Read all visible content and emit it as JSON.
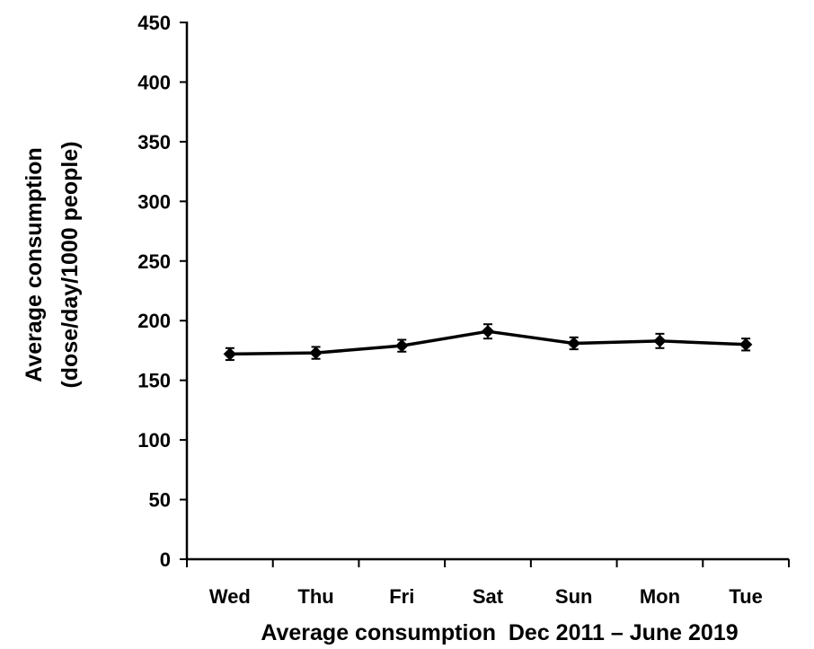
{
  "chart_data": {
    "type": "line",
    "title": "",
    "xlabel": "Average consumption  Dec 2011 – June 2019",
    "ylabel_lines": [
      "Average consumption",
      "(dose/day/1000 people)"
    ],
    "categories": [
      "Wed",
      "Thu",
      "Fri",
      "Sat",
      "Sun",
      "Mon",
      "Tue"
    ],
    "series": [
      {
        "values": [
          172,
          173,
          179,
          191,
          181,
          183,
          180
        ],
        "errors": [
          5,
          5,
          5,
          6,
          5,
          6,
          5
        ]
      }
    ],
    "ylim": [
      0,
      450
    ],
    "yticks": [
      0,
      50,
      100,
      150,
      200,
      250,
      300,
      350,
      400,
      450
    ],
    "ytick_labels": [
      "0",
      "50",
      "100",
      "150",
      "200",
      "250",
      "300",
      "350",
      "400",
      "450"
    ],
    "grid": false,
    "legend": "none",
    "colors": {
      "line": "#000000",
      "marker": "#000000"
    }
  }
}
